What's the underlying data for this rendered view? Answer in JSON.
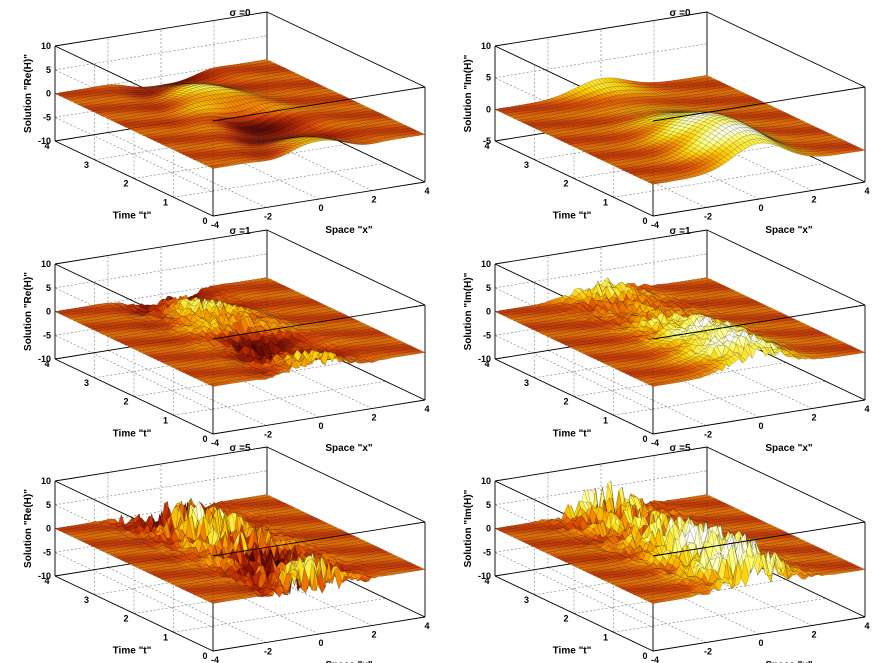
{
  "chart_data": [
    {
      "type": "surface",
      "title": "σ =0",
      "xlabel": "Space \"x\"",
      "ylabel": "Time \"t\"",
      "zlabel": "Solution \"Re(H)\"",
      "x_ticks": [
        "-4",
        "-2",
        "0",
        "2",
        "4"
      ],
      "y_ticks": [
        "0",
        "1",
        "2",
        "3",
        "4"
      ],
      "z_ticks": [
        "-10",
        "-5",
        "0",
        "5",
        "10"
      ],
      "xlim": [
        -4,
        4
      ],
      "ylim": [
        0,
        4
      ],
      "zlim": [
        -10,
        10
      ],
      "sigma": 0,
      "component": "re",
      "grid": "on"
    },
    {
      "type": "surface",
      "title": "σ =0",
      "xlabel": "Space \"x\"",
      "ylabel": "Time \"t\"",
      "zlabel": "Solution \"Im(H)\"",
      "x_ticks": [
        "-4",
        "-2",
        "0",
        "2",
        "4"
      ],
      "y_ticks": [
        "0",
        "1",
        "2",
        "3",
        "4"
      ],
      "z_ticks": [
        "-5",
        "0",
        "5",
        "10"
      ],
      "xlim": [
        -4,
        4
      ],
      "ylim": [
        0,
        4
      ],
      "zlim": [
        -5,
        10
      ],
      "sigma": 0,
      "component": "im",
      "grid": "on"
    },
    {
      "type": "surface",
      "title": "σ =1",
      "xlabel": "Space \"x\"",
      "ylabel": "Time \"t\"",
      "zlabel": "Solution \"Re(H)\"",
      "x_ticks": [
        "-4",
        "-2",
        "0",
        "2",
        "4"
      ],
      "y_ticks": [
        "0",
        "1",
        "2",
        "3",
        "4"
      ],
      "z_ticks": [
        "-10",
        "-5",
        "0",
        "5",
        "10"
      ],
      "xlim": [
        -4,
        4
      ],
      "ylim": [
        0,
        4
      ],
      "zlim": [
        -10,
        10
      ],
      "sigma": 1,
      "component": "re",
      "grid": "on"
    },
    {
      "type": "surface",
      "title": "σ =1",
      "xlabel": "Space \"x\"",
      "ylabel": "Time \"t\"",
      "zlabel": "Solution \"Im(H)\"",
      "x_ticks": [
        "-4",
        "-2",
        "0",
        "2",
        "4"
      ],
      "y_ticks": [
        "0",
        "1",
        "2",
        "3",
        "4"
      ],
      "z_ticks": [
        "-10",
        "-5",
        "0",
        "5",
        "10"
      ],
      "xlim": [
        -4,
        4
      ],
      "ylim": [
        0,
        4
      ],
      "zlim": [
        -10,
        10
      ],
      "sigma": 1,
      "component": "im",
      "grid": "on"
    },
    {
      "type": "surface",
      "title": "σ =5",
      "xlabel": "Space \"x\"",
      "ylabel": "Time \"t\"",
      "zlabel": "Solution \"Re(H)\"",
      "x_ticks": [
        "-4",
        "-2",
        "0",
        "2",
        "4"
      ],
      "y_ticks": [
        "0",
        "1",
        "2",
        "3",
        "4"
      ],
      "z_ticks": [
        "-10",
        "-5",
        "0",
        "5",
        "10"
      ],
      "xlim": [
        -4,
        4
      ],
      "ylim": [
        0,
        4
      ],
      "zlim": [
        -10,
        10
      ],
      "sigma": 5,
      "component": "re",
      "grid": "on"
    },
    {
      "type": "surface",
      "title": "σ =5",
      "xlabel": "Space \"x\"",
      "ylabel": "Time \"t\"",
      "zlabel": "Solution \"Im(H)\"",
      "x_ticks": [
        "-4",
        "-2",
        "0",
        "2",
        "4"
      ],
      "y_ticks": [
        "0",
        "1",
        "2",
        "3",
        "4"
      ],
      "z_ticks": [
        "-10",
        "-5",
        "0",
        "5",
        "10"
      ],
      "xlim": [
        -4,
        4
      ],
      "ylim": [
        0,
        4
      ],
      "zlim": [
        -10,
        10
      ],
      "sigma": 5,
      "component": "im",
      "grid": "on"
    }
  ],
  "colormap": [
    "#1a0000",
    "#6a0a00",
    "#b02200",
    "#e04a00",
    "#f58a00",
    "#ffd000",
    "#ffff70",
    "#ffffff"
  ]
}
